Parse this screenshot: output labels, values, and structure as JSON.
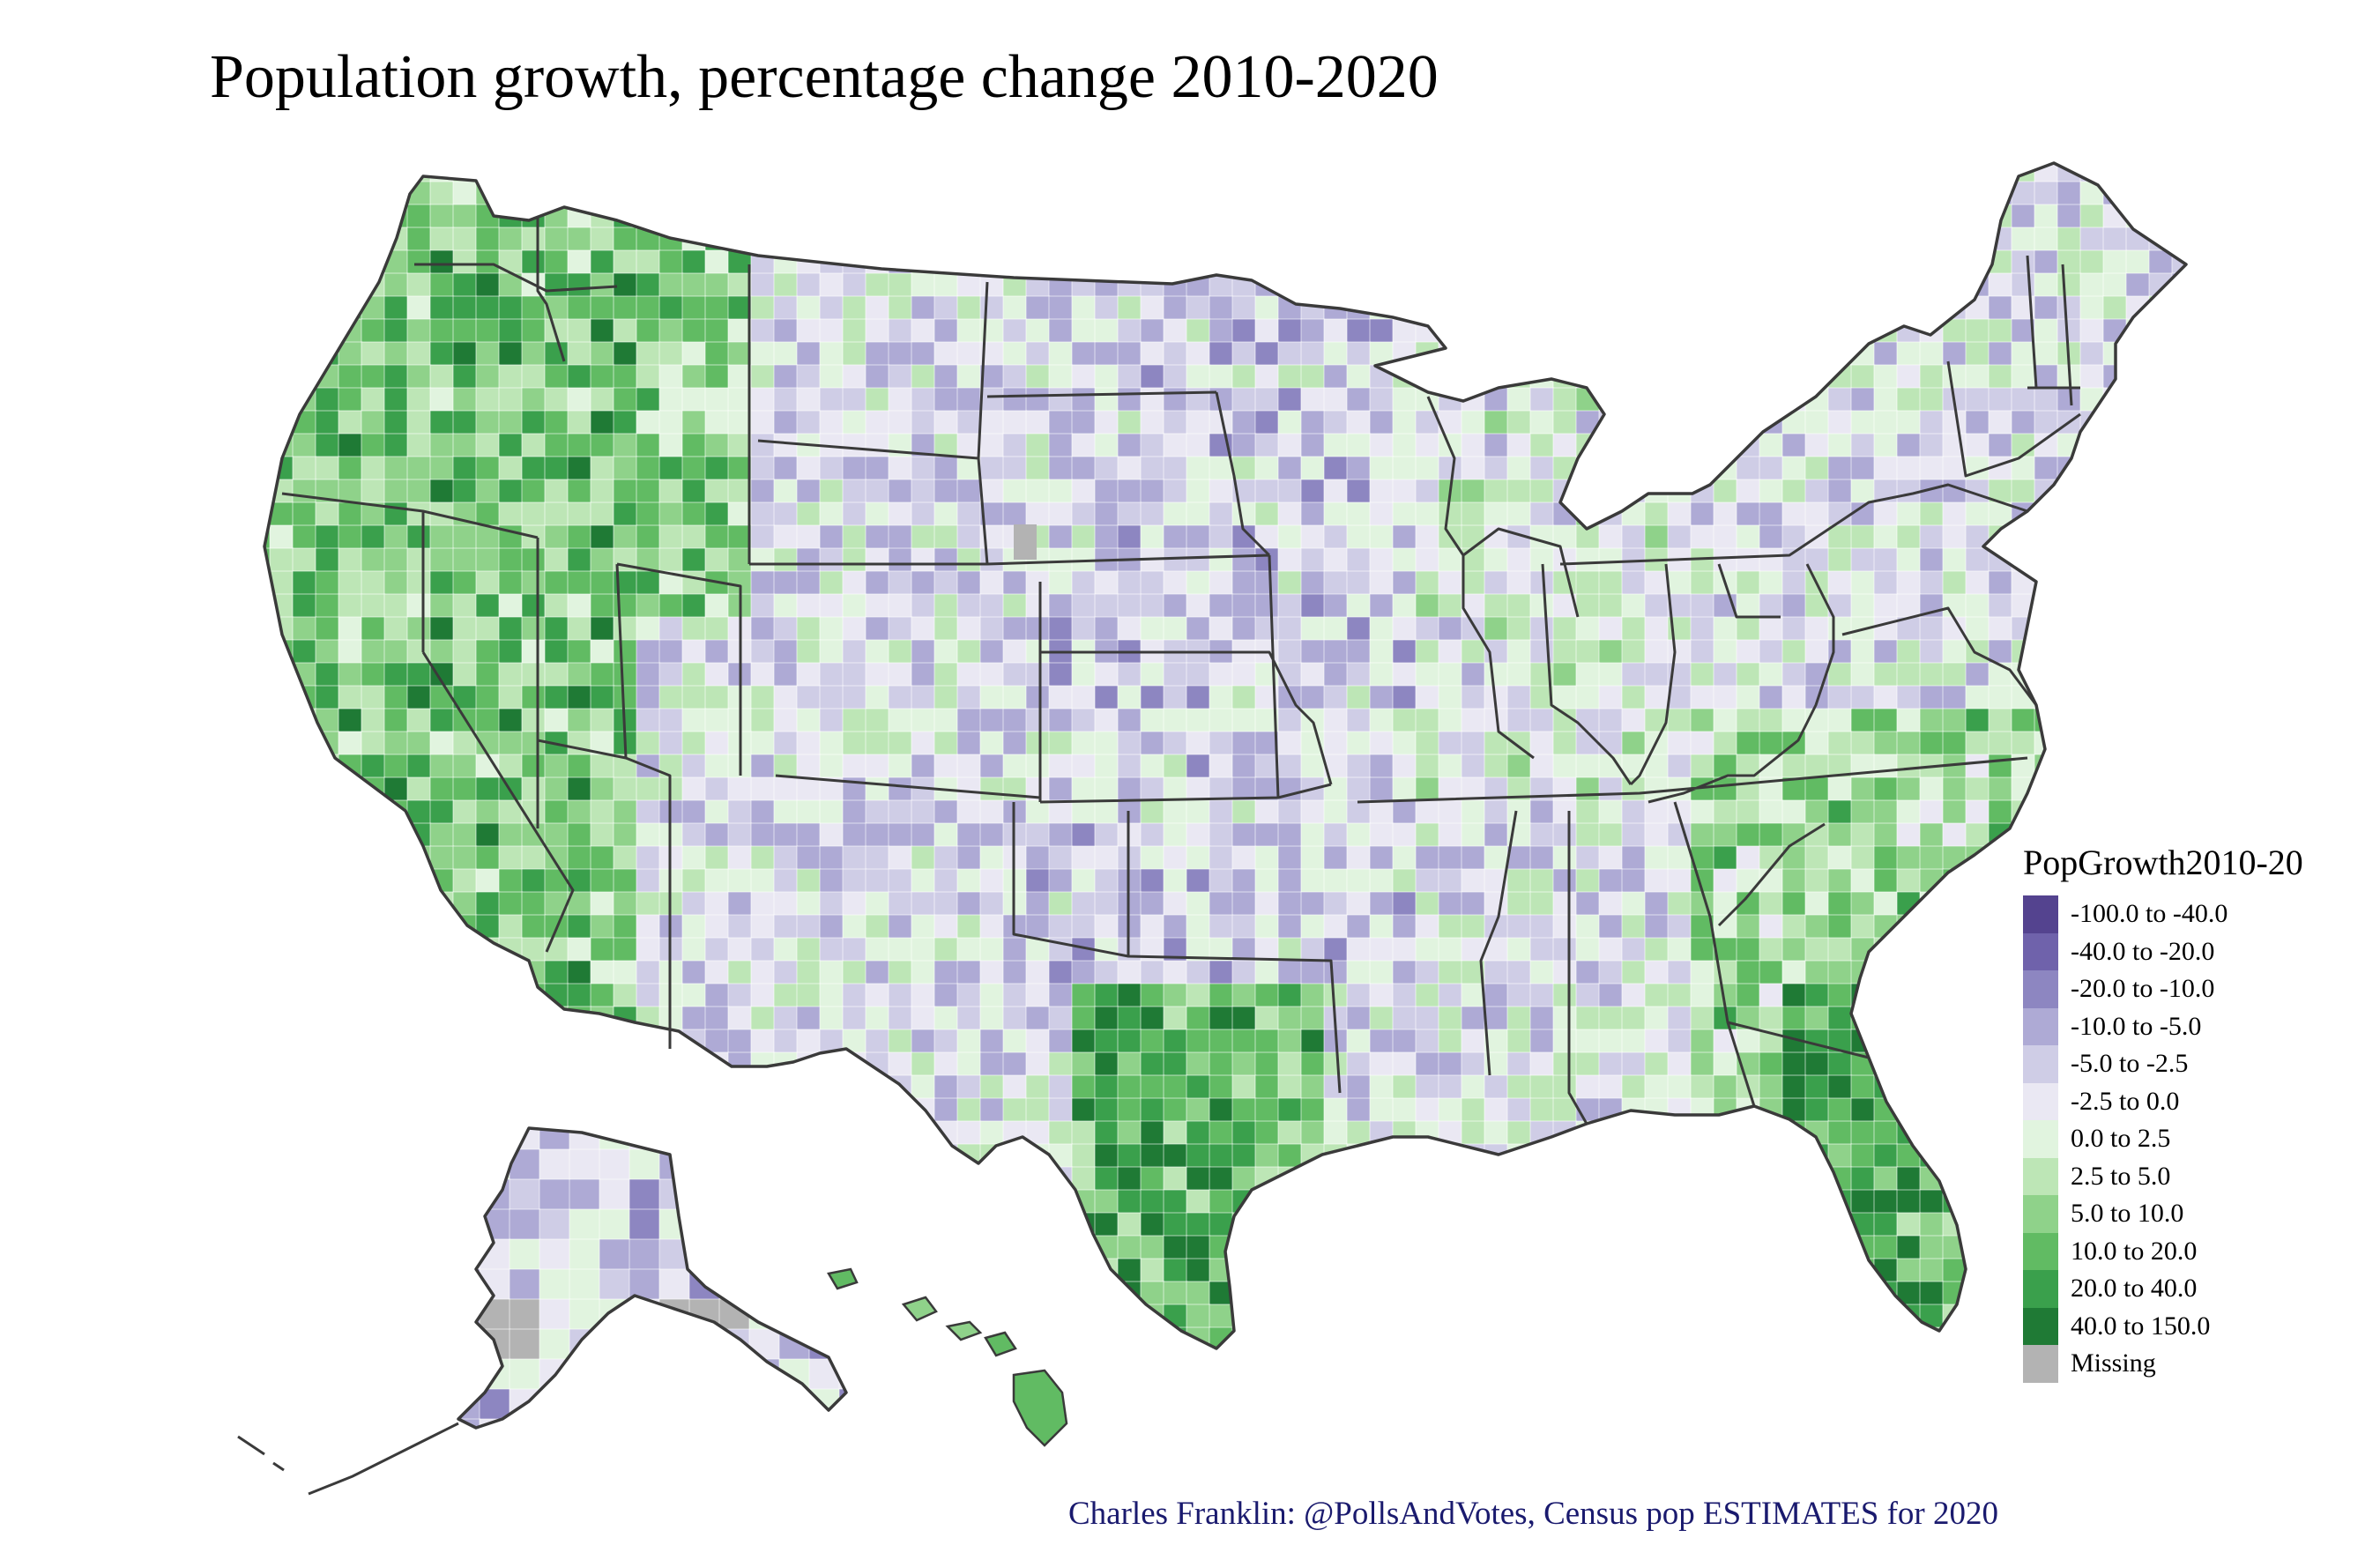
{
  "title": "Population growth, percentage change 2010-2020",
  "legend": {
    "title": "PopGrowth2010-20",
    "items": [
      {
        "label": "-100.0 to -40.0",
        "color": "#54438f"
      },
      {
        "label": "-40.0 to -20.0",
        "color": "#6f62ab"
      },
      {
        "label": "-20.0 to -10.0",
        "color": "#8d86c1"
      },
      {
        "label": "-10.0 to -5.0",
        "color": "#aeaad5"
      },
      {
        "label": "-5.0 to -2.5",
        "color": "#cfcde6"
      },
      {
        "label": "-2.5 to 0.0",
        "color": "#eae8f3"
      },
      {
        "label": "0.0 to 2.5",
        "color": "#e1f4df"
      },
      {
        "label": "2.5 to 5.0",
        "color": "#bde6b6"
      },
      {
        "label": "5.0 to 10.0",
        "color": "#8fd28a"
      },
      {
        "label": "10.0 to 20.0",
        "color": "#61bb63"
      },
      {
        "label": "20.0 to 40.0",
        "color": "#3aa04c"
      },
      {
        "label": "40.0 to 150.0",
        "color": "#1f7a35"
      },
      {
        "label": "Missing",
        "color": "#b3b3b3"
      }
    ]
  },
  "caption": "Charles Franklin: @PollsAndVotes, Census pop ESTIMATES for 2020"
}
